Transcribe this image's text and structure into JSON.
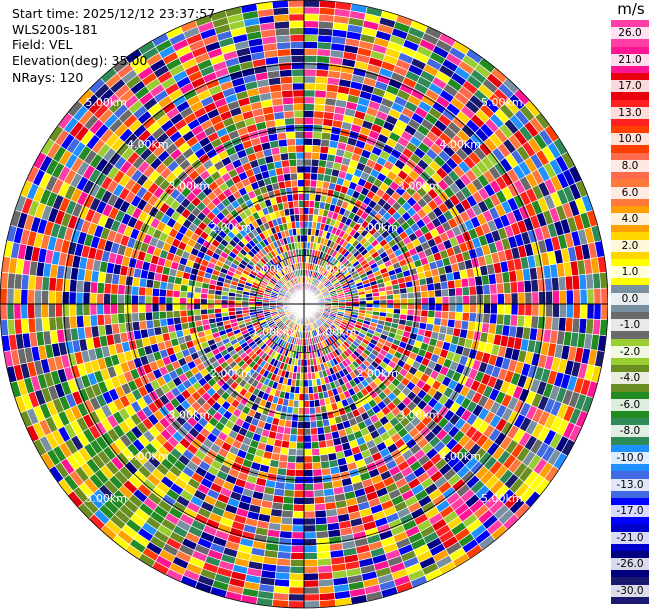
{
  "header": {
    "start_time": "Start time: 2025/12/12 23:37:57",
    "instrument": "WLS200s-181",
    "field": "Field: VEL",
    "elevation": "Elevation(deg): 35.00",
    "nrays": "NRays: 120"
  },
  "chart_data": {
    "type": "heatmap",
    "projection": "polar-ppi",
    "field": "VEL",
    "units": "m/s",
    "nrays": 120,
    "elevation_deg": 35.0,
    "range_rings": [
      {
        "label": "1.00km",
        "frac": 0.16
      },
      {
        "label": "2.00km",
        "frac": 0.37
      },
      {
        "label": "3.00km",
        "frac": 0.58
      },
      {
        "label": "4.00km",
        "frac": 0.79
      },
      {
        "label": "5.00km",
        "frac": 1.0
      }
    ],
    "colorbar": {
      "ticks": [
        "26.0",
        "21.0",
        "17.0",
        "13.0",
        "10.0",
        "8.0",
        "6.0",
        "4.0",
        "2.0",
        "1.0",
        "0.0",
        "-1.0",
        "-2.0",
        "-4.0",
        "-6.0",
        "-8.0",
        "-10.0",
        "-13.0",
        "-17.0",
        "-21.0",
        "-26.0",
        "-30.0"
      ],
      "colors": [
        "#ff3fa6",
        "#ff1493",
        "#e8000b",
        "#ff2020",
        "#ff3f00",
        "#ff6a4d",
        "#ff7a3a",
        "#ff9f00",
        "#ffd700",
        "#ffff00",
        "#7890a0",
        "#6a6a6a",
        "#9acd32",
        "#6b8e23",
        "#228b22",
        "#2e8b57",
        "#1e90ff",
        "#4169e1",
        "#0000ff",
        "#0000cd",
        "#000080",
        "#191970"
      ]
    },
    "features": {
      "coherent_region": "lower-left",
      "coherent_colors": [
        "#ffff00",
        "#ffd700",
        "#6b8e23",
        "#228b22"
      ]
    }
  }
}
